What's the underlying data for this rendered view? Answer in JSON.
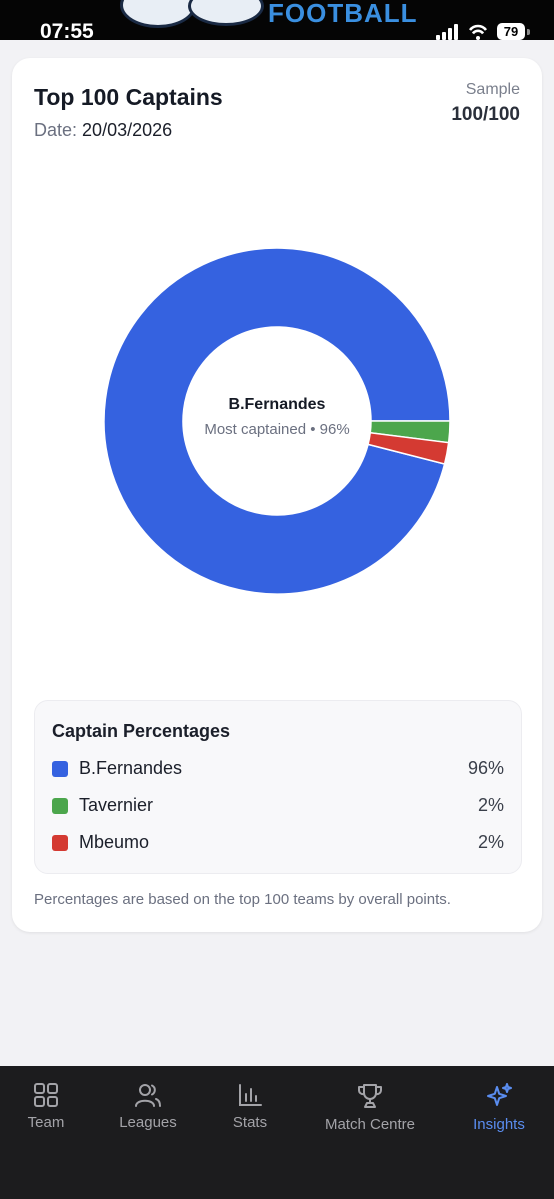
{
  "status_bar": {
    "time": "07:55",
    "battery": "79",
    "banner_text": "FOOTBALL"
  },
  "card": {
    "title": "Top 100 Captains",
    "date_label": "Date:",
    "date_value": "20/03/2026",
    "sample_label": "Sample",
    "sample_value": "100/100",
    "center_name": "B.Fernandes",
    "center_subtitle": "Most captained • 96%",
    "legend_title": "Captain Percentages",
    "footnote": "Percentages are based on the top 100 teams by overall points."
  },
  "chart_data": {
    "type": "pie",
    "categories": [
      "B.Fernandes",
      "Tavernier",
      "Mbeumo"
    ],
    "values": [
      96,
      2,
      2
    ],
    "labels": [
      "96%",
      "2%",
      "2%"
    ],
    "colors": [
      "#3562e0",
      "#4ca64c",
      "#d43a32"
    ]
  },
  "nav": {
    "items": [
      {
        "label": "Team",
        "icon": "grid-icon"
      },
      {
        "label": "Leagues",
        "icon": "users-icon"
      },
      {
        "label": "Stats",
        "icon": "bar-chart-icon"
      },
      {
        "label": "Match Centre",
        "icon": "trophy-icon"
      },
      {
        "label": "Insights",
        "icon": "sparkles-icon"
      }
    ],
    "active": "Insights",
    "active_color": "#5a8df0"
  }
}
